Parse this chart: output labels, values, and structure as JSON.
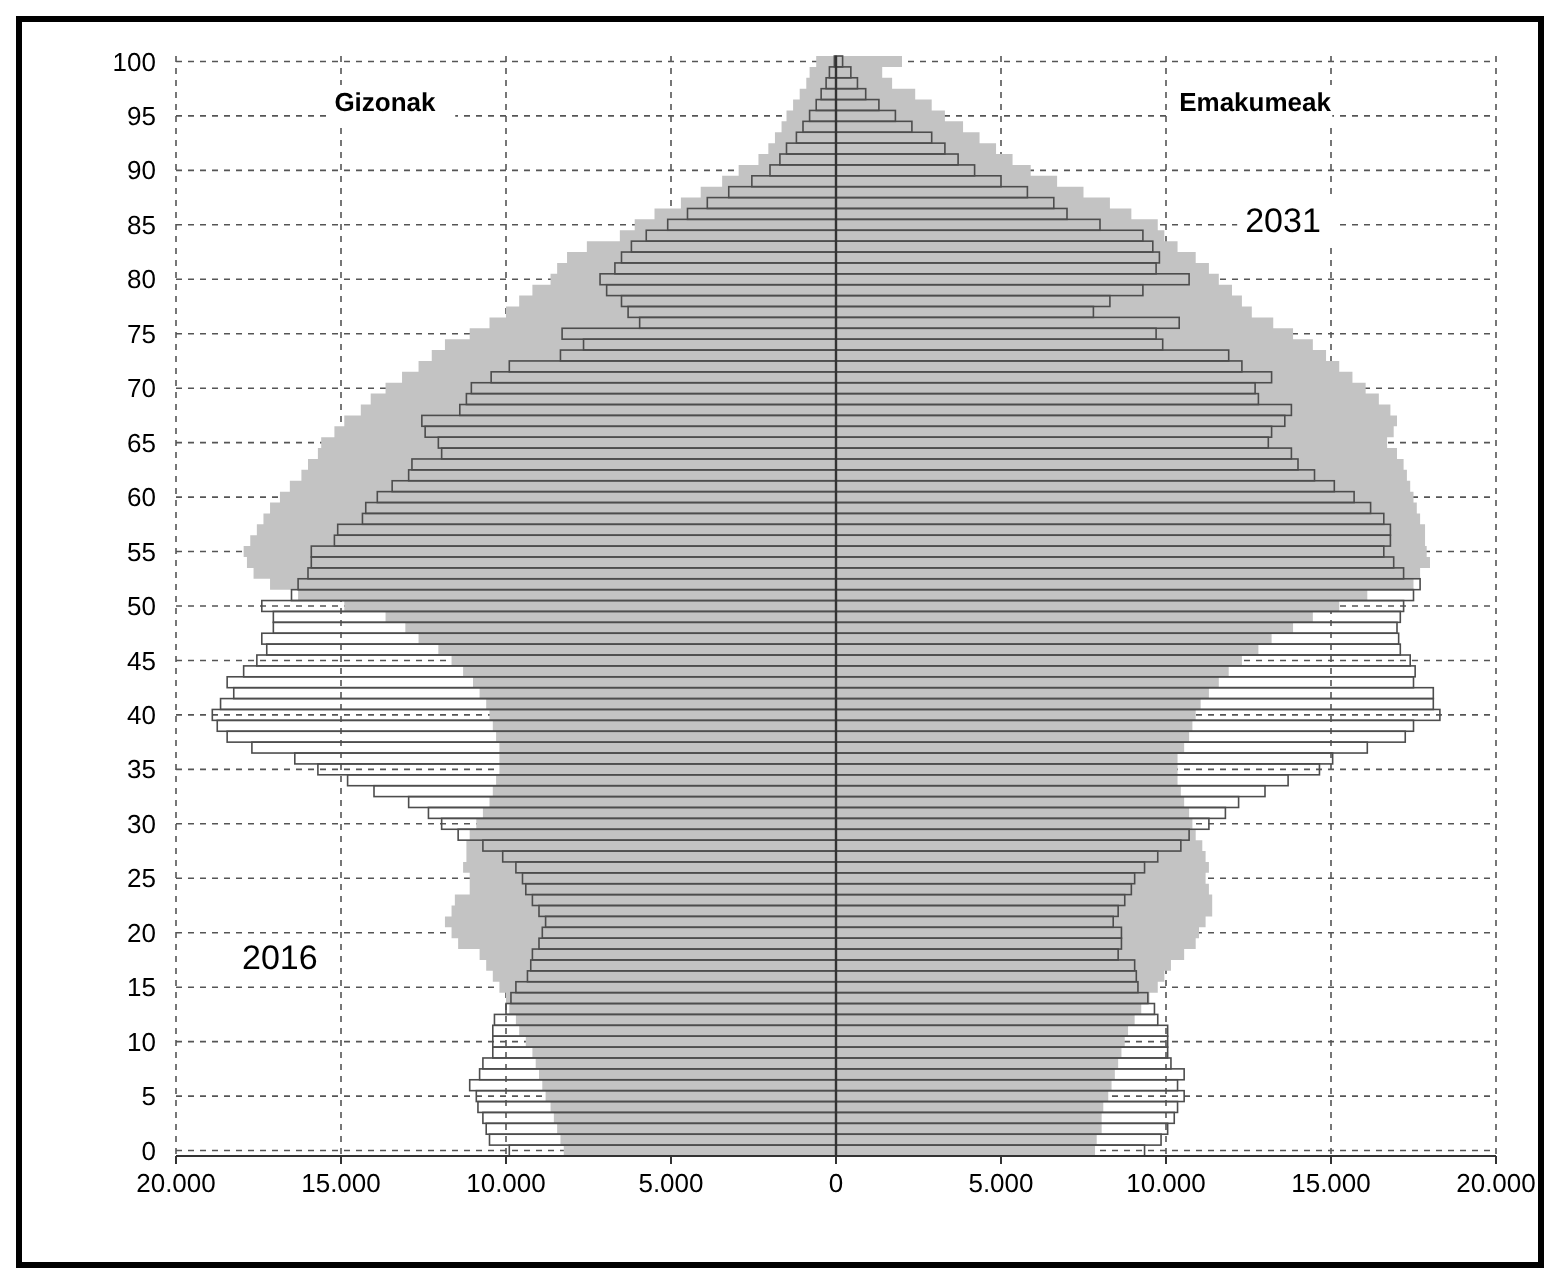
{
  "chart_data": {
    "type": "bar",
    "orientation": "horizontal",
    "grid": true,
    "categories": [
      "100",
      null,
      null,
      null,
      null,
      "95",
      null,
      null,
      null,
      null,
      "90",
      null,
      null,
      null,
      null,
      "85",
      null,
      null,
      null,
      null,
      "80",
      null,
      null,
      null,
      null,
      "75",
      null,
      null,
      null,
      null,
      "70",
      null,
      null,
      null,
      null,
      "65",
      null,
      null,
      null,
      null,
      "60",
      null,
      null,
      null,
      null,
      "55",
      null,
      null,
      null,
      null,
      "50",
      null,
      null,
      null,
      null,
      "45",
      null,
      null,
      null,
      null,
      "40",
      null,
      null,
      null,
      null,
      "35",
      null,
      null,
      null,
      null,
      "30",
      null,
      null,
      null,
      null,
      "25",
      null,
      null,
      null,
      null,
      "20",
      null,
      null,
      null,
      null,
      "15",
      null,
      null,
      null,
      null,
      "10",
      null,
      null,
      null,
      null,
      "5",
      null,
      null,
      null,
      null,
      "0"
    ],
    "xlim": [
      -20000,
      20000
    ],
    "xticks": [
      {
        "value": -20000,
        "label": "20.000"
      },
      {
        "value": -15000,
        "label": "15.000"
      },
      {
        "value": -10000,
        "label": "10.000"
      },
      {
        "value": -5000,
        "label": "5.000"
      },
      0,
      {
        "value": 5000,
        "label": "5.000"
      },
      {
        "value": 10000,
        "label": "10.000"
      },
      {
        "value": 15000,
        "label": "15.000"
      },
      {
        "value": 20000,
        "label": "20.000"
      }
    ],
    "series": [
      {
        "type": "area",
        "color": "#c3c3c3",
        "values": [
          -600,
          -800,
          -900,
          -1100,
          -1300,
          -1500,
          -1650,
          -1850,
          -2050,
          -2350,
          -2950,
          -3450,
          -4100,
          -4700,
          -5500,
          -6100,
          -6550,
          -7550,
          -8150,
          -8450,
          -8650,
          -9200,
          -9600,
          -10000,
          -10500,
          -11100,
          -11850,
          -12250,
          -12650,
          -13150,
          -13650,
          -14100,
          -14400,
          -14900,
          -15200,
          -15600,
          -15700,
          -16000,
          -16200,
          -16550,
          -16850,
          -17150,
          -17350,
          -17550,
          -17750,
          -17950,
          -17850,
          -17650,
          -17150,
          -16300,
          -14900,
          -13650,
          -13050,
          -12650,
          -12050,
          -11650,
          -11300,
          -11000,
          -10800,
          -10600,
          -10500,
          -10400,
          -10300,
          -10200,
          -10200,
          -10200,
          -10300,
          -10400,
          -10500,
          -10700,
          -10900,
          -11100,
          -11200,
          -11200,
          -11300,
          -11100,
          -11100,
          -11550,
          -11650,
          -11850,
          -11650,
          -11450,
          -10800,
          -10600,
          -10400,
          -10200,
          -10000,
          -9900,
          -9700,
          -9600,
          -9400,
          -9200,
          -9100,
          -9000,
          -8900,
          -8800,
          -8650,
          -8550,
          -8450,
          -8350,
          -8250
        ]
      },
      {
        "type": "area",
        "color": "#c3c3c3",
        "values": [
          2000,
          1400,
          1700,
          2400,
          2900,
          3300,
          3850,
          4350,
          4850,
          5350,
          5900,
          6700,
          7500,
          8300,
          8950,
          9750,
          9950,
          10350,
          10900,
          11300,
          11600,
          12000,
          12300,
          12600,
          13250,
          13850,
          14450,
          14850,
          15250,
          15650,
          16050,
          16450,
          16800,
          17000,
          16900,
          16700,
          17000,
          17200,
          17300,
          17400,
          17500,
          17600,
          17700,
          17850,
          17850,
          17900,
          18000,
          17700,
          17500,
          16100,
          15250,
          14450,
          13850,
          13200,
          12800,
          12300,
          11900,
          11600,
          11300,
          11050,
          10900,
          10800,
          10700,
          10550,
          10350,
          10350,
          10350,
          10450,
          10550,
          10700,
          10800,
          10900,
          11100,
          11200,
          11300,
          11200,
          11300,
          11400,
          11400,
          11200,
          11000,
          10900,
          10550,
          10150,
          9950,
          9750,
          9500,
          9250,
          9050,
          8850,
          8750,
          8650,
          8550,
          8450,
          8350,
          8250,
          8100,
          8050,
          8050,
          7900,
          7850
        ]
      },
      {
        "color": "#4d4d4d",
        "values": [
          -50,
          -200,
          -300,
          -450,
          -600,
          -800,
          -1000,
          -1200,
          -1500,
          -1700,
          -2000,
          -2550,
          -3250,
          -3900,
          -4500,
          -5100,
          -5750,
          -6200,
          -6500,
          -6700,
          -7150,
          -6950,
          -6500,
          -6300,
          -5950,
          -8300,
          -7650,
          -8350,
          -9900,
          -10450,
          -11050,
          -11200,
          -11400,
          -12550,
          -12450,
          -12050,
          -11950,
          -12850,
          -12950,
          -13450,
          -13900,
          -14250,
          -14350,
          -15100,
          -15200,
          -15900,
          -15900,
          -16000,
          -16300,
          -16500,
          -17400,
          -17050,
          -17050,
          -17400,
          -17250,
          -17550,
          -17950,
          -18450,
          -18250,
          -18650,
          -18900,
          -18750,
          -18450,
          -17700,
          -16400,
          -15700,
          -14800,
          -14000,
          -12950,
          -12350,
          -11950,
          -11450,
          -10700,
          -10100,
          -9700,
          -9500,
          -9400,
          -9200,
          -9000,
          -8800,
          -8900,
          -9000,
          -9200,
          -9250,
          -9350,
          -9700,
          -9850,
          -10000,
          -10350,
          -10400,
          -10400,
          -10400,
          -10700,
          -10800,
          -11100,
          -10900,
          -10850,
          -10700,
          -10600,
          -10500,
          -9900
        ]
      },
      {
        "color": "#4d4d4d",
        "values": [
          200,
          450,
          650,
          900,
          1300,
          1800,
          2300,
          2900,
          3300,
          3700,
          4200,
          5000,
          5800,
          6600,
          7000,
          8000,
          9300,
          9600,
          9800,
          9700,
          10700,
          9300,
          8300,
          7800,
          10400,
          9700,
          9900,
          11900,
          12300,
          13200,
          12700,
          12800,
          13800,
          13600,
          13200,
          13100,
          13800,
          14000,
          14500,
          15100,
          15700,
          16200,
          16600,
          16800,
          16800,
          16600,
          16900,
          17200,
          17700,
          17500,
          17200,
          17100,
          17000,
          17050,
          17100,
          17400,
          17550,
          17500,
          18100,
          18100,
          18300,
          17500,
          17250,
          16100,
          15050,
          14650,
          13700,
          13000,
          12200,
          11800,
          11300,
          10700,
          10450,
          9750,
          9350,
          9050,
          8950,
          8750,
          8550,
          8400,
          8650,
          8650,
          8550,
          9050,
          9100,
          9150,
          9450,
          9650,
          9750,
          10050,
          10050,
          10050,
          10150,
          10550,
          10350,
          10550,
          10350,
          10250,
          10050,
          9850,
          9350
        ]
      }
    ],
    "annotations": [
      "Gizonak",
      "Emakumeak",
      "2016",
      "2031"
    ]
  }
}
